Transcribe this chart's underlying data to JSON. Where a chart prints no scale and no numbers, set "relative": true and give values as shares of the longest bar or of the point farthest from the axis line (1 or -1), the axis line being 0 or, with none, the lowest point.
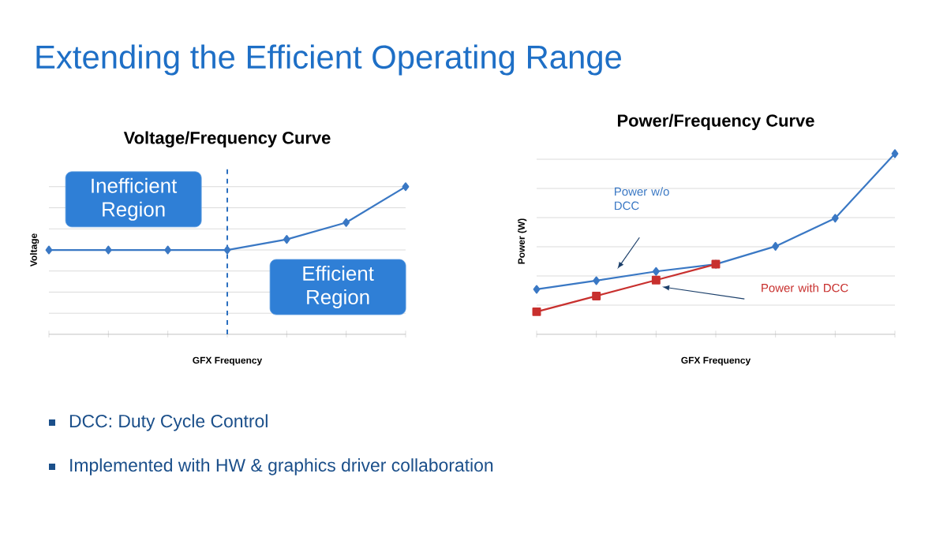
{
  "chart_data": [
    {
      "type": "other",
      "title": "Extending the Efficient Operating Range",
      "annotations": [
        "DCC: Duty Cycle Control",
        "Implemented with HW & graphics driver collaboration"
      ]
    },
    {
      "type": "line",
      "title": "Voltage/Frequency Curve",
      "xlabel": "GFX Frequency",
      "ylabel": "Voltage",
      "relative": true,
      "grid": "y",
      "legend": false,
      "categories": [
        null,
        null,
        null,
        null,
        null,
        null,
        null
      ],
      "series": [
        {
          "color": "#3a78c4",
          "marker": "diamond",
          "values": [
            0.571,
            0.571,
            0.571,
            0.571,
            0.643,
            0.757,
            1.0
          ]
        }
      ],
      "annotations": [
        "Inefficient Region",
        "Efficient Region"
      ]
    },
    {
      "type": "line",
      "title": "Power/Frequency Curve",
      "xlabel": "GFX Frequency",
      "ylabel": "Power (W)",
      "relative": true,
      "grid": "y",
      "legend": false,
      "categories": [
        null,
        null,
        null,
        null,
        null,
        null,
        null
      ],
      "series": [
        {
          "name": "Power w/o DCC",
          "color": "#3a78c4",
          "marker": "diamond",
          "values": [
            0.249,
            0.297,
            0.348,
            0.388,
            0.487,
            0.643,
            1.0
          ]
        },
        {
          "name": "Power with DCC",
          "color": "#c8302e",
          "marker": "square",
          "values": [
            0.125,
            0.212,
            0.3,
            0.388,
            null,
            null,
            null
          ]
        }
      ]
    }
  ]
}
